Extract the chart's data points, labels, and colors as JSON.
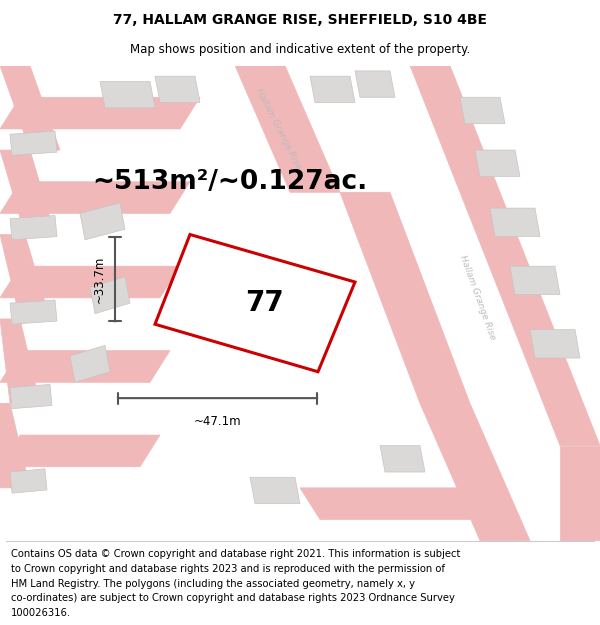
{
  "title": "77, HALLAM GRANGE RISE, SHEFFIELD, S10 4BE",
  "subtitle": "Map shows position and indicative extent of the property.",
  "area_text": "~513m²/~0.127ac.",
  "property_number": "77",
  "width_label": "~47.1m",
  "height_label": "~33.7m",
  "footer_lines": [
    "Contains OS data © Crown copyright and database right 2021. This information is subject",
    "to Crown copyright and database rights 2023 and is reproduced with the permission of",
    "HM Land Registry. The polygons (including the associated geometry, namely x, y",
    "co-ordinates) are subject to Crown copyright and database rights 2023 Ordnance Survey",
    "100026316."
  ],
  "map_bg_color": "#f2f0f0",
  "property_fill": "#ffffff",
  "property_color": "#cc0000",
  "street_color": "#f0b8b8",
  "building_face": "#dbd8d8",
  "building_edge": "#c8c4c4",
  "road_label_color": "#bbbbbb",
  "title_fontsize": 10,
  "subtitle_fontsize": 8.5,
  "footer_fontsize": 7.2,
  "area_fontsize": 19,
  "number_fontsize": 20,
  "dim_fontsize": 8.5
}
